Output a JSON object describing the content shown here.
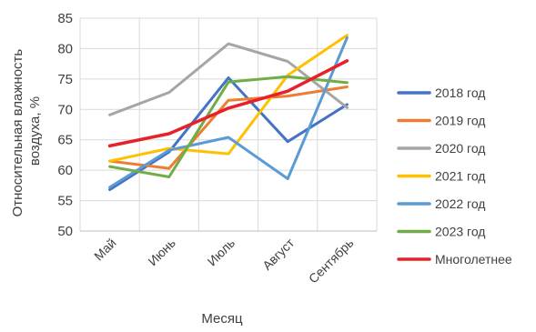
{
  "chart_data": {
    "type": "line",
    "categories": [
      "Май",
      "Июнь",
      "Июль",
      "Август",
      "Сентябрь"
    ],
    "xlabel": "Месяц",
    "ylabel_lines": [
      "Относительная влажность",
      "воздуха, %"
    ],
    "ylim": [
      50,
      85
    ],
    "yticks": [
      50,
      55,
      60,
      65,
      70,
      75,
      80,
      85
    ],
    "grid": "horizontal",
    "legend_position": "right",
    "series": [
      {
        "name": "2018 год",
        "color": "#4472C4",
        "values": [
          56.8,
          63.0,
          75.2,
          64.7,
          70.8
        ]
      },
      {
        "name": "2019 год",
        "color": "#ED7D31",
        "values": [
          61.5,
          60.3,
          71.5,
          72.2,
          73.7
        ]
      },
      {
        "name": "2020 год",
        "color": "#A5A5A5",
        "values": [
          69.1,
          72.8,
          80.8,
          77.9,
          70.3
        ]
      },
      {
        "name": "2021 год",
        "color": "#FFC000",
        "values": [
          61.5,
          63.6,
          62.7,
          75.6,
          82.2
        ]
      },
      {
        "name": "2022 год",
        "color": "#5B9BD5",
        "values": [
          57.2,
          63.3,
          65.4,
          58.6,
          81.8
        ]
      },
      {
        "name": "2023 год",
        "color": "#70AD47",
        "values": [
          60.6,
          58.9,
          74.5,
          75.4,
          74.4
        ]
      },
      {
        "name": "Многолетнее",
        "color": "#E8202A",
        "values": [
          64.0,
          66.0,
          70.2,
          73.0,
          78.0
        ]
      }
    ]
  }
}
